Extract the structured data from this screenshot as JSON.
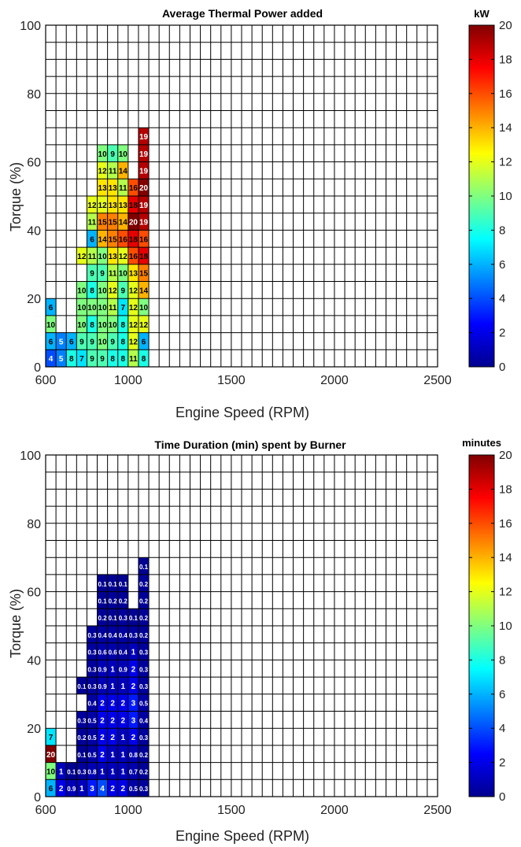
{
  "colors": {
    "grid": "#000000",
    "background": "#ffffff",
    "text_on_dark": "#ffffff",
    "text_on_light": "#000000"
  },
  "chart_data": [
    {
      "type": "heatmap",
      "title": "Average Thermal Power added",
      "xlabel": "Engine Speed (RPM)",
      "ylabel": "Torque (%)",
      "xlim": [
        600,
        2500
      ],
      "ylim": [
        0,
        100
      ],
      "x_bin_width": 50,
      "y_bin_width": 5,
      "xticks": [
        "600",
        "1000",
        "1500",
        "2000",
        "2500"
      ],
      "yticks": [
        "0",
        "20",
        "40",
        "60",
        "80",
        "100"
      ],
      "colorbar": {
        "label": "kW",
        "min": 0,
        "max": 20,
        "ticks": [
          "0",
          "2",
          "4",
          "6",
          "8",
          "10",
          "12",
          "14",
          "16",
          "18",
          "20"
        ]
      },
      "cells": [
        {
          "x": 600,
          "y": 0,
          "value": "4"
        },
        {
          "x": 650,
          "y": 0,
          "value": "5"
        },
        {
          "x": 700,
          "y": 0,
          "value": "8"
        },
        {
          "x": 750,
          "y": 0,
          "value": "7"
        },
        {
          "x": 800,
          "y": 0,
          "value": "9"
        },
        {
          "x": 850,
          "y": 0,
          "value": "9"
        },
        {
          "x": 900,
          "y": 0,
          "value": "8"
        },
        {
          "x": 950,
          "y": 0,
          "value": "8"
        },
        {
          "x": 1000,
          "y": 0,
          "value": "11"
        },
        {
          "x": 1050,
          "y": 0,
          "value": "8"
        },
        {
          "x": 600,
          "y": 5,
          "value": "6"
        },
        {
          "x": 650,
          "y": 5,
          "value": "5"
        },
        {
          "x": 700,
          "y": 5,
          "value": "6"
        },
        {
          "x": 750,
          "y": 5,
          "value": "9"
        },
        {
          "x": 800,
          "y": 5,
          "value": "9"
        },
        {
          "x": 850,
          "y": 5,
          "value": "10"
        },
        {
          "x": 900,
          "y": 5,
          "value": "9"
        },
        {
          "x": 950,
          "y": 5,
          "value": "8"
        },
        {
          "x": 1000,
          "y": 5,
          "value": "12"
        },
        {
          "x": 1050,
          "y": 5,
          "value": "6"
        },
        {
          "x": 600,
          "y": 10,
          "value": "10"
        },
        {
          "x": 750,
          "y": 10,
          "value": "10"
        },
        {
          "x": 800,
          "y": 10,
          "value": "8"
        },
        {
          "x": 850,
          "y": 10,
          "value": "10"
        },
        {
          "x": 900,
          "y": 10,
          "value": "10"
        },
        {
          "x": 950,
          "y": 10,
          "value": "8"
        },
        {
          "x": 1000,
          "y": 10,
          "value": "12"
        },
        {
          "x": 1050,
          "y": 10,
          "value": "12"
        },
        {
          "x": 600,
          "y": 15,
          "value": "6"
        },
        {
          "x": 750,
          "y": 15,
          "value": "10"
        },
        {
          "x": 800,
          "y": 15,
          "value": "10"
        },
        {
          "x": 850,
          "y": 15,
          "value": "10"
        },
        {
          "x": 900,
          "y": 15,
          "value": "11"
        },
        {
          "x": 950,
          "y": 15,
          "value": "7"
        },
        {
          "x": 1000,
          "y": 15,
          "value": "12"
        },
        {
          "x": 1050,
          "y": 15,
          "value": "10"
        },
        {
          "x": 750,
          "y": 20,
          "value": "10"
        },
        {
          "x": 800,
          "y": 20,
          "value": "8"
        },
        {
          "x": 850,
          "y": 20,
          "value": "10"
        },
        {
          "x": 900,
          "y": 20,
          "value": "12"
        },
        {
          "x": 950,
          "y": 20,
          "value": "9"
        },
        {
          "x": 1000,
          "y": 20,
          "value": "12"
        },
        {
          "x": 1050,
          "y": 20,
          "value": "14"
        },
        {
          "x": 800,
          "y": 25,
          "value": "9"
        },
        {
          "x": 850,
          "y": 25,
          "value": "9"
        },
        {
          "x": 900,
          "y": 25,
          "value": "11"
        },
        {
          "x": 950,
          "y": 25,
          "value": "10"
        },
        {
          "x": 1000,
          "y": 25,
          "value": "13"
        },
        {
          "x": 1050,
          "y": 25,
          "value": "15"
        },
        {
          "x": 750,
          "y": 30,
          "value": "12"
        },
        {
          "x": 800,
          "y": 30,
          "value": "11"
        },
        {
          "x": 850,
          "y": 30,
          "value": "10"
        },
        {
          "x": 900,
          "y": 30,
          "value": "13"
        },
        {
          "x": 950,
          "y": 30,
          "value": "12"
        },
        {
          "x": 1000,
          "y": 30,
          "value": "16"
        },
        {
          "x": 1050,
          "y": 30,
          "value": "18"
        },
        {
          "x": 800,
          "y": 35,
          "value": "6"
        },
        {
          "x": 850,
          "y": 35,
          "value": "14"
        },
        {
          "x": 900,
          "y": 35,
          "value": "15"
        },
        {
          "x": 950,
          "y": 35,
          "value": "16"
        },
        {
          "x": 1000,
          "y": 35,
          "value": "18"
        },
        {
          "x": 1050,
          "y": 35,
          "value": "16"
        },
        {
          "x": 800,
          "y": 40,
          "value": "11"
        },
        {
          "x": 850,
          "y": 40,
          "value": "15"
        },
        {
          "x": 900,
          "y": 40,
          "value": "15"
        },
        {
          "x": 950,
          "y": 40,
          "value": "14"
        },
        {
          "x": 1000,
          "y": 40,
          "value": "20"
        },
        {
          "x": 1050,
          "y": 40,
          "value": "19"
        },
        {
          "x": 800,
          "y": 45,
          "value": "12"
        },
        {
          "x": 850,
          "y": 45,
          "value": "12"
        },
        {
          "x": 900,
          "y": 45,
          "value": "13"
        },
        {
          "x": 950,
          "y": 45,
          "value": "13"
        },
        {
          "x": 1000,
          "y": 45,
          "value": "18"
        },
        {
          "x": 1050,
          "y": 45,
          "value": "19"
        },
        {
          "x": 850,
          "y": 50,
          "value": "13"
        },
        {
          "x": 900,
          "y": 50,
          "value": "13"
        },
        {
          "x": 950,
          "y": 50,
          "value": "11"
        },
        {
          "x": 1000,
          "y": 50,
          "value": "16"
        },
        {
          "x": 1050,
          "y": 50,
          "value": "20"
        },
        {
          "x": 850,
          "y": 55,
          "value": "12"
        },
        {
          "x": 900,
          "y": 55,
          "value": "11"
        },
        {
          "x": 950,
          "y": 55,
          "value": "14"
        },
        {
          "x": 1050,
          "y": 55,
          "value": "19"
        },
        {
          "x": 850,
          "y": 60,
          "value": "10"
        },
        {
          "x": 900,
          "y": 60,
          "value": "9"
        },
        {
          "x": 950,
          "y": 60,
          "value": "10"
        },
        {
          "x": 1050,
          "y": 60,
          "value": "19"
        },
        {
          "x": 1050,
          "y": 65,
          "value": "19"
        }
      ]
    },
    {
      "type": "heatmap",
      "title": "Time Duration (min) spent by Burner",
      "xlabel": "Engine Speed (RPM)",
      "ylabel": "Torque (%)",
      "xlim": [
        600,
        2500
      ],
      "ylim": [
        0,
        100
      ],
      "x_bin_width": 50,
      "y_bin_width": 5,
      "xticks": [
        "600",
        "1000",
        "1500",
        "2000",
        "2500"
      ],
      "yticks": [
        "0",
        "20",
        "40",
        "60",
        "80",
        "100"
      ],
      "colorbar": {
        "label": "minutes",
        "min": 0,
        "max": 20,
        "ticks": [
          "0",
          "2",
          "4",
          "6",
          "8",
          "10",
          "12",
          "14",
          "16",
          "18",
          "20"
        ]
      },
      "cells": [
        {
          "x": 600,
          "y": 0,
          "value": "6"
        },
        {
          "x": 650,
          "y": 0,
          "value": "2"
        },
        {
          "x": 700,
          "y": 0,
          "value": "0.9"
        },
        {
          "x": 750,
          "y": 0,
          "value": "1"
        },
        {
          "x": 800,
          "y": 0,
          "value": "3"
        },
        {
          "x": 850,
          "y": 0,
          "value": "4"
        },
        {
          "x": 900,
          "y": 0,
          "value": "2"
        },
        {
          "x": 950,
          "y": 0,
          "value": "2"
        },
        {
          "x": 1000,
          "y": 0,
          "value": "0.5"
        },
        {
          "x": 1050,
          "y": 0,
          "value": "0.3"
        },
        {
          "x": 600,
          "y": 5,
          "value": "10"
        },
        {
          "x": 650,
          "y": 5,
          "value": "1"
        },
        {
          "x": 700,
          "y": 5,
          "value": "0.1"
        },
        {
          "x": 750,
          "y": 5,
          "value": "0.3"
        },
        {
          "x": 800,
          "y": 5,
          "value": "0.8"
        },
        {
          "x": 850,
          "y": 5,
          "value": "1"
        },
        {
          "x": 900,
          "y": 5,
          "value": "1"
        },
        {
          "x": 950,
          "y": 5,
          "value": "1"
        },
        {
          "x": 1000,
          "y": 5,
          "value": "0.7"
        },
        {
          "x": 1050,
          "y": 5,
          "value": "0.2"
        },
        {
          "x": 600,
          "y": 10,
          "value": "20"
        },
        {
          "x": 750,
          "y": 10,
          "value": "0.1"
        },
        {
          "x": 800,
          "y": 10,
          "value": "0.5"
        },
        {
          "x": 850,
          "y": 10,
          "value": "2"
        },
        {
          "x": 900,
          "y": 10,
          "value": "1"
        },
        {
          "x": 950,
          "y": 10,
          "value": "1"
        },
        {
          "x": 1000,
          "y": 10,
          "value": "0.8"
        },
        {
          "x": 1050,
          "y": 10,
          "value": "0.2"
        },
        {
          "x": 600,
          "y": 15,
          "value": "7"
        },
        {
          "x": 750,
          "y": 15,
          "value": "0.2"
        },
        {
          "x": 800,
          "y": 15,
          "value": "0.5"
        },
        {
          "x": 850,
          "y": 15,
          "value": "2"
        },
        {
          "x": 900,
          "y": 15,
          "value": "2"
        },
        {
          "x": 950,
          "y": 15,
          "value": "1"
        },
        {
          "x": 1000,
          "y": 15,
          "value": "2"
        },
        {
          "x": 1050,
          "y": 15,
          "value": "0.3"
        },
        {
          "x": 750,
          "y": 20,
          "value": "0.3"
        },
        {
          "x": 800,
          "y": 20,
          "value": "0.5"
        },
        {
          "x": 850,
          "y": 20,
          "value": "2"
        },
        {
          "x": 900,
          "y": 20,
          "value": "2"
        },
        {
          "x": 950,
          "y": 20,
          "value": "2"
        },
        {
          "x": 1000,
          "y": 20,
          "value": "3"
        },
        {
          "x": 1050,
          "y": 20,
          "value": "0.4"
        },
        {
          "x": 800,
          "y": 25,
          "value": "0.4"
        },
        {
          "x": 850,
          "y": 25,
          "value": "2"
        },
        {
          "x": 900,
          "y": 25,
          "value": "2"
        },
        {
          "x": 950,
          "y": 25,
          "value": "2"
        },
        {
          "x": 1000,
          "y": 25,
          "value": "3"
        },
        {
          "x": 1050,
          "y": 25,
          "value": "0.5"
        },
        {
          "x": 750,
          "y": 30,
          "value": "0.1"
        },
        {
          "x": 800,
          "y": 30,
          "value": "0.3"
        },
        {
          "x": 850,
          "y": 30,
          "value": "0.9"
        },
        {
          "x": 900,
          "y": 30,
          "value": "1"
        },
        {
          "x": 950,
          "y": 30,
          "value": "1"
        },
        {
          "x": 1000,
          "y": 30,
          "value": "2"
        },
        {
          "x": 1050,
          "y": 30,
          "value": "0.3"
        },
        {
          "x": 800,
          "y": 35,
          "value": "0.3"
        },
        {
          "x": 850,
          "y": 35,
          "value": "0.9"
        },
        {
          "x": 900,
          "y": 35,
          "value": "1"
        },
        {
          "x": 950,
          "y": 35,
          "value": "0.9"
        },
        {
          "x": 1000,
          "y": 35,
          "value": "2"
        },
        {
          "x": 1050,
          "y": 35,
          "value": "0.3"
        },
        {
          "x": 800,
          "y": 40,
          "value": "0.3"
        },
        {
          "x": 850,
          "y": 40,
          "value": "0.6"
        },
        {
          "x": 900,
          "y": 40,
          "value": "0.6"
        },
        {
          "x": 950,
          "y": 40,
          "value": "0.4"
        },
        {
          "x": 1000,
          "y": 40,
          "value": "1"
        },
        {
          "x": 1050,
          "y": 40,
          "value": "0.3"
        },
        {
          "x": 800,
          "y": 45,
          "value": "0.3"
        },
        {
          "x": 850,
          "y": 45,
          "value": "0.4"
        },
        {
          "x": 900,
          "y": 45,
          "value": "0.4"
        },
        {
          "x": 950,
          "y": 45,
          "value": "0.4"
        },
        {
          "x": 1000,
          "y": 45,
          "value": "0.3"
        },
        {
          "x": 1050,
          "y": 45,
          "value": "0.2"
        },
        {
          "x": 850,
          "y": 50,
          "value": "0.2"
        },
        {
          "x": 900,
          "y": 50,
          "value": "0.1"
        },
        {
          "x": 950,
          "y": 50,
          "value": "0.3"
        },
        {
          "x": 1000,
          "y": 50,
          "value": "0.1"
        },
        {
          "x": 1050,
          "y": 50,
          "value": "0.2"
        },
        {
          "x": 850,
          "y": 55,
          "value": "0.1"
        },
        {
          "x": 900,
          "y": 55,
          "value": "0.2"
        },
        {
          "x": 950,
          "y": 55,
          "value": "0.2"
        },
        {
          "x": 1050,
          "y": 55,
          "value": "0.2"
        },
        {
          "x": 850,
          "y": 60,
          "value": "0.1"
        },
        {
          "x": 900,
          "y": 60,
          "value": "0.1"
        },
        {
          "x": 950,
          "y": 60,
          "value": "0.1"
        },
        {
          "x": 1050,
          "y": 60,
          "value": "0.2"
        },
        {
          "x": 1050,
          "y": 65,
          "value": "0.1"
        }
      ]
    }
  ]
}
